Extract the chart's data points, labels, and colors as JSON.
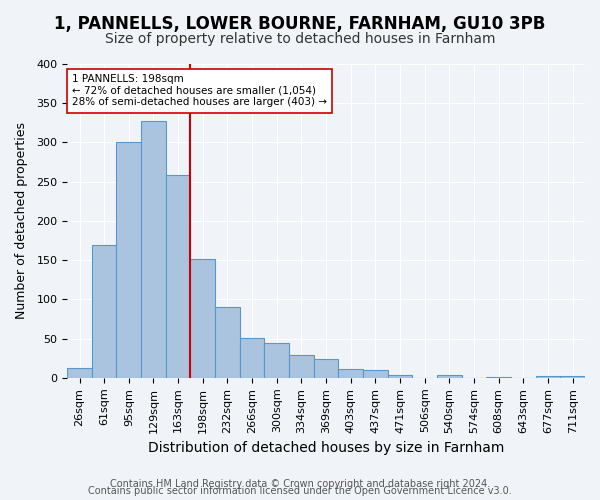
{
  "title": "1, PANNELLS, LOWER BOURNE, FARNHAM, GU10 3PB",
  "subtitle": "Size of property relative to detached houses in Farnham",
  "xlabel": "Distribution of detached houses by size in Farnham",
  "ylabel": "Number of detached properties",
  "categories": [
    "26sqm",
    "61sqm",
    "95sqm",
    "129sqm",
    "163sqm",
    "198sqm",
    "232sqm",
    "266sqm",
    "300sqm",
    "334sqm",
    "369sqm",
    "403sqm",
    "437sqm",
    "471sqm",
    "506sqm",
    "540sqm",
    "574sqm",
    "608sqm",
    "643sqm",
    "677sqm",
    "711sqm"
  ],
  "values": [
    13,
    170,
    300,
    328,
    258,
    152,
    91,
    51,
    44,
    29,
    24,
    11,
    10,
    4,
    0,
    4,
    0,
    1,
    0,
    3,
    3
  ],
  "bar_color": "#aac4e0",
  "bar_edge_color": "#5599cc",
  "vline_x_idx": 5,
  "vline_color": "#cc0000",
  "annotation_text": "1 PANNELLS: 198sqm\n← 72% of detached houses are smaller (1,054)\n28% of semi-detached houses are larger (403) →",
  "annotation_box_color": "#ffffff",
  "annotation_box_edge": "#cc0000",
  "bg_color": "#f0f4f8",
  "footer_line1": "Contains HM Land Registry data © Crown copyright and database right 2024.",
  "footer_line2": "Contains public sector information licensed under the Open Government Licence v3.0.",
  "ylim": [
    0,
    400
  ],
  "title_fontsize": 12,
  "subtitle_fontsize": 10,
  "xlabel_fontsize": 10,
  "ylabel_fontsize": 9,
  "tick_fontsize": 8,
  "footer_fontsize": 7
}
